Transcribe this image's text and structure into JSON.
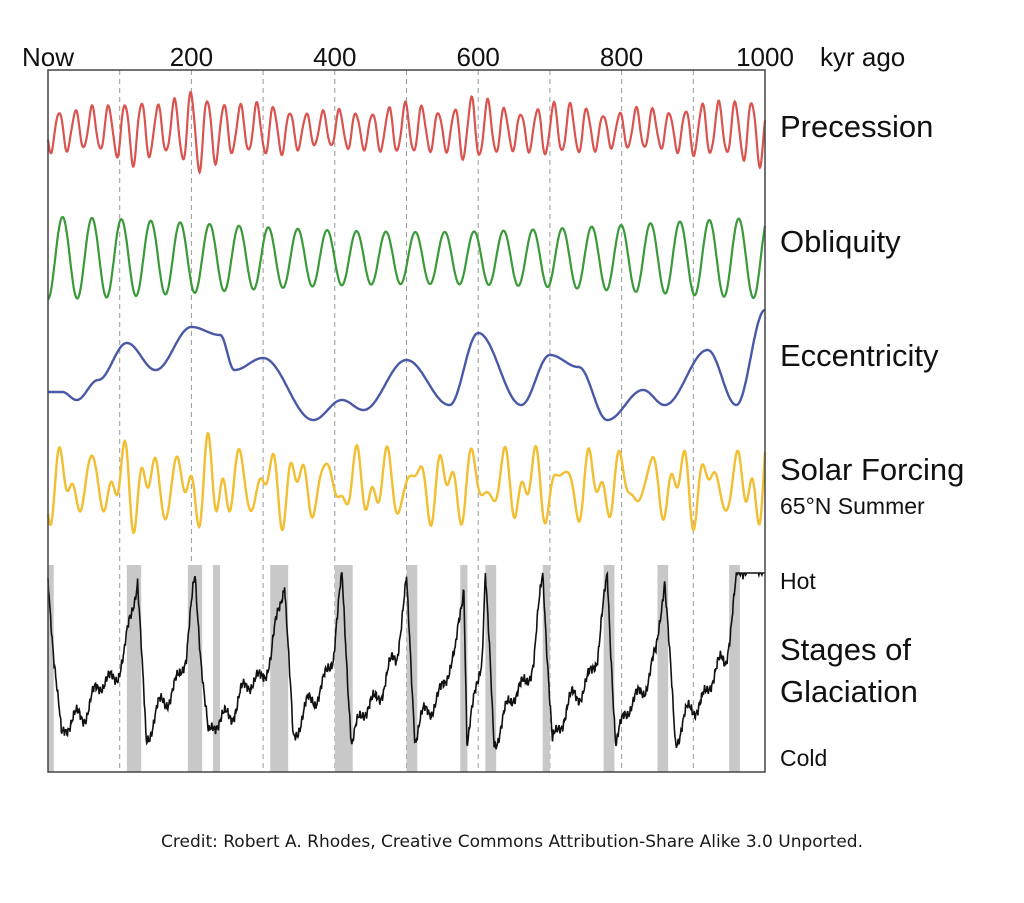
{
  "chart_data": {
    "type": "line",
    "title": "",
    "xlabel": "kyr ago",
    "x_ticks": [
      {
        "label": "Now",
        "value": 0
      },
      {
        "label": "200",
        "value": 200
      },
      {
        "label": "400",
        "value": 400
      },
      {
        "label": "600",
        "value": 600
      },
      {
        "label": "800",
        "value": 800
      },
      {
        "label": "1000",
        "value": 1000
      }
    ],
    "xlim": [
      0,
      1000
    ],
    "minor_gridlines": [
      100,
      200,
      300,
      400,
      500,
      600,
      700,
      800,
      900
    ],
    "series": [
      {
        "name": "Precession",
        "color": "#d9534f",
        "period_kyr": 23,
        "peaks_kyr": [
          125,
          200,
          215,
          580,
          955,
          975
        ]
      },
      {
        "name": "Obliquity",
        "color": "#3a9a3a",
        "period_kyr": 41
      },
      {
        "name": "Eccentricity",
        "color": "#4a58a8",
        "period_kyr": 100,
        "points": [
          [
            0,
            392
          ],
          [
            20,
            392
          ],
          [
            40,
            400
          ],
          [
            70,
            380
          ],
          [
            110,
            343
          ],
          [
            150,
            370
          ],
          [
            200,
            327
          ],
          [
            240,
            335
          ],
          [
            260,
            370
          ],
          [
            300,
            358
          ],
          [
            370,
            420
          ],
          [
            410,
            400
          ],
          [
            440,
            410
          ],
          [
            500,
            360
          ],
          [
            560,
            405
          ],
          [
            600,
            333
          ],
          [
            660,
            405
          ],
          [
            700,
            355
          ],
          [
            740,
            367
          ],
          [
            780,
            420
          ],
          [
            830,
            390
          ],
          [
            860,
            405
          ],
          [
            920,
            350
          ],
          [
            960,
            405
          ],
          [
            1000,
            310
          ]
        ]
      },
      {
        "name": "Solar Forcing",
        "subtitle": "65°N Summer",
        "color": "#f2be32"
      },
      {
        "name": "Stages of Glaciation",
        "top_label": "Hot",
        "bottom_label": "Cold",
        "color": "#111111",
        "interglacial_bands_kyr": [
          [
            0,
            8
          ],
          [
            110,
            130
          ],
          [
            195,
            215
          ],
          [
            230,
            240
          ],
          [
            310,
            335
          ],
          [
            400,
            425
          ],
          [
            500,
            515
          ],
          [
            575,
            585
          ],
          [
            610,
            625
          ],
          [
            690,
            700
          ],
          [
            775,
            790
          ],
          [
            850,
            865
          ],
          [
            950,
            965
          ]
        ],
        "peaks_kyr": [
          0,
          125,
          205,
          330,
          410,
          500,
          580,
          610,
          690,
          780,
          860,
          960
        ],
        "troughs_kyr": [
          20,
          140,
          300,
          440,
          530,
          620,
          750,
          850,
          930
        ]
      }
    ]
  },
  "credit": "Credit: Robert A. Rhodes, Creative Commons Attribution-Share Alike 3.0 Unported."
}
